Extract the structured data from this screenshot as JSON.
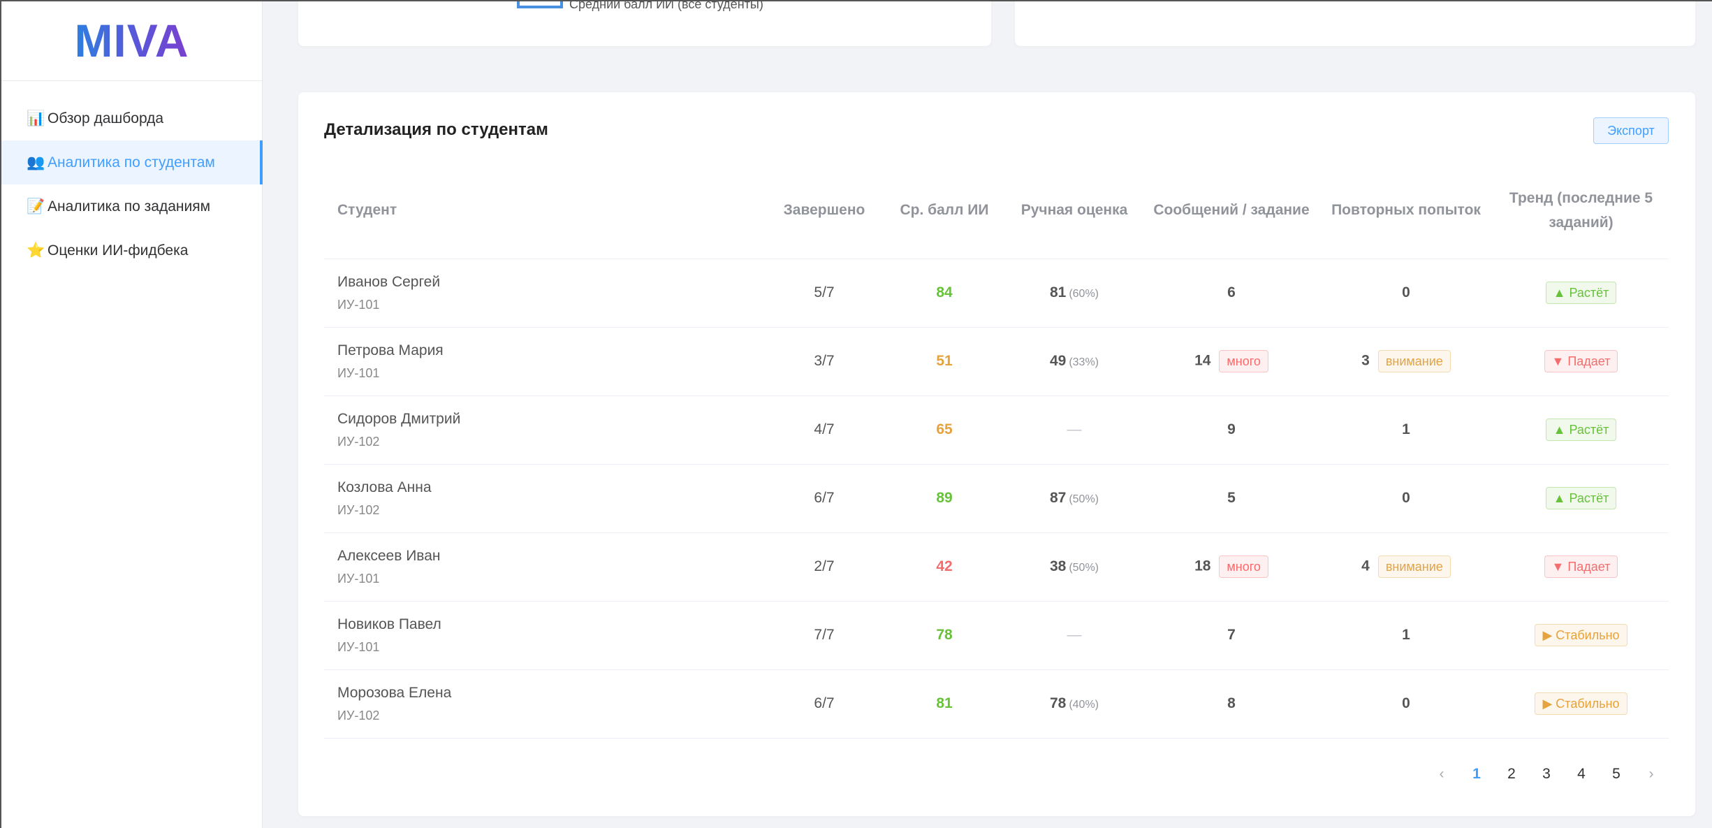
{
  "logo": "MIVA",
  "sidebar": {
    "items": [
      {
        "icon": "📊",
        "label": "Обзор дашборда",
        "active": false
      },
      {
        "icon": "👥",
        "label": "Аналитика по студентам",
        "active": true
      },
      {
        "icon": "📝",
        "label": "Аналитика по заданиям",
        "active": false
      },
      {
        "icon": "⭐",
        "label": "Оценки ИИ-фидбека",
        "active": false
      }
    ]
  },
  "top_chart": {
    "legend_label": "Средний балл ИИ (все студенты)"
  },
  "main": {
    "title": "Детализация по студентам",
    "export_label": "Экспорт",
    "columns": [
      "Студент",
      "Завершено",
      "Ср. балл ИИ",
      "Ручная оценка",
      "Сообщений / задание",
      "Повторных попыток",
      "Тренд (последние 5 заданий)"
    ],
    "rows": [
      {
        "name": "Иванов Сергей",
        "group": "ИУ-101",
        "completed": "5/7",
        "ai_score": "84",
        "ai_color": "green",
        "manual": "81",
        "manual_pct": "(60%)",
        "messages": "6",
        "messages_tag": "",
        "retries": "0",
        "retries_tag": "",
        "trend": "▲ Растёт",
        "trend_type": "success"
      },
      {
        "name": "Петрова Мария",
        "group": "ИУ-101",
        "completed": "3/7",
        "ai_score": "51",
        "ai_color": "orange",
        "manual": "49",
        "manual_pct": "(33%)",
        "messages": "14",
        "messages_tag": "много",
        "retries": "3",
        "retries_tag": "внимание",
        "trend": "▼ Падает",
        "trend_type": "fall"
      },
      {
        "name": "Сидоров Дмитрий",
        "group": "ИУ-102",
        "completed": "4/7",
        "ai_score": "65",
        "ai_color": "orange",
        "manual": "—",
        "manual_pct": "",
        "messages": "9",
        "messages_tag": "",
        "retries": "1",
        "retries_tag": "",
        "trend": "▲ Растёт",
        "trend_type": "success"
      },
      {
        "name": "Козлова Анна",
        "group": "ИУ-102",
        "completed": "6/7",
        "ai_score": "89",
        "ai_color": "green",
        "manual": "87",
        "manual_pct": "(50%)",
        "messages": "5",
        "messages_tag": "",
        "retries": "0",
        "retries_tag": "",
        "trend": "▲ Растёт",
        "trend_type": "success"
      },
      {
        "name": "Алексеев Иван",
        "group": "ИУ-101",
        "completed": "2/7",
        "ai_score": "42",
        "ai_color": "red",
        "manual": "38",
        "manual_pct": "(50%)",
        "messages": "18",
        "messages_tag": "много",
        "retries": "4",
        "retries_tag": "внимание",
        "trend": "▼ Падает",
        "trend_type": "fall"
      },
      {
        "name": "Новиков Павел",
        "group": "ИУ-101",
        "completed": "7/7",
        "ai_score": "78",
        "ai_color": "green",
        "manual": "—",
        "manual_pct": "",
        "messages": "7",
        "messages_tag": "",
        "retries": "1",
        "retries_tag": "",
        "trend": "▶ Стабильно",
        "trend_type": "stable"
      },
      {
        "name": "Морозова Елена",
        "group": "ИУ-102",
        "completed": "6/7",
        "ai_score": "81",
        "ai_color": "green",
        "manual": "78",
        "manual_pct": "(40%)",
        "messages": "8",
        "messages_tag": "",
        "retries": "0",
        "retries_tag": "",
        "trend": "▶ Стабильно",
        "trend_type": "stable"
      }
    ]
  },
  "pagination": {
    "prev": "‹",
    "pages": [
      "1",
      "2",
      "3",
      "4",
      "5"
    ],
    "current": "1",
    "next": "›"
  }
}
